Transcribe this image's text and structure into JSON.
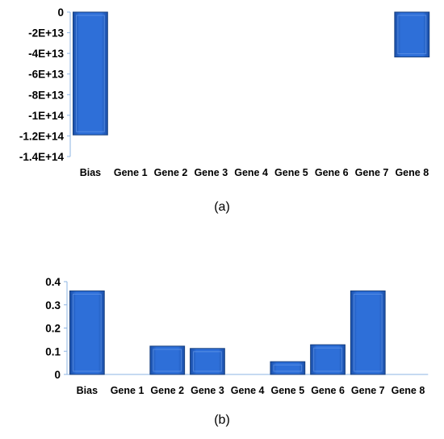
{
  "chart_data": [
    {
      "type": "bar",
      "categories": [
        "Bias",
        "Gene 1",
        "Gene 2",
        "Gene 3",
        "Gene 4",
        "Gene 5",
        "Gene 6",
        "Gene 7",
        "Gene 8"
      ],
      "values": [
        -119000000000000.0,
        0,
        0,
        0,
        0,
        0,
        0,
        0,
        -43500000000000.0
      ],
      "yticks": [
        0,
        -20000000000000.0,
        -40000000000000.0,
        -60000000000000.0,
        -80000000000000.0,
        -100000000000000.0,
        -120000000000000.0,
        -140000000000000.0
      ],
      "ytick_labels": [
        "0",
        "-2E+13",
        "-4E+13",
        "-6E+13",
        "-8E+13",
        "-1E+14",
        "-1.2E+14",
        "-1.4E+14"
      ],
      "ylim": [
        -140000000000000.0,
        0
      ],
      "caption": "(a)",
      "bar_color": "#2E6FD8",
      "grid": false
    },
    {
      "type": "bar",
      "categories": [
        "Bias",
        "Gene 1",
        "Gene 2",
        "Gene 3",
        "Gene 4",
        "Gene 5",
        "Gene 6",
        "Gene 7",
        "Gene 8"
      ],
      "values": [
        0.36,
        0,
        0.122,
        0.112,
        0,
        0.055,
        0.128,
        0.36,
        0
      ],
      "yticks": [
        0,
        0.1,
        0.2,
        0.3,
        0.4
      ],
      "ytick_labels": [
        "0",
        "0.1",
        "0.2",
        "0.3",
        "0.4"
      ],
      "ylim": [
        0,
        0.4
      ],
      "caption": "(b)",
      "bar_color": "#2E6FD8",
      "grid": false
    }
  ]
}
